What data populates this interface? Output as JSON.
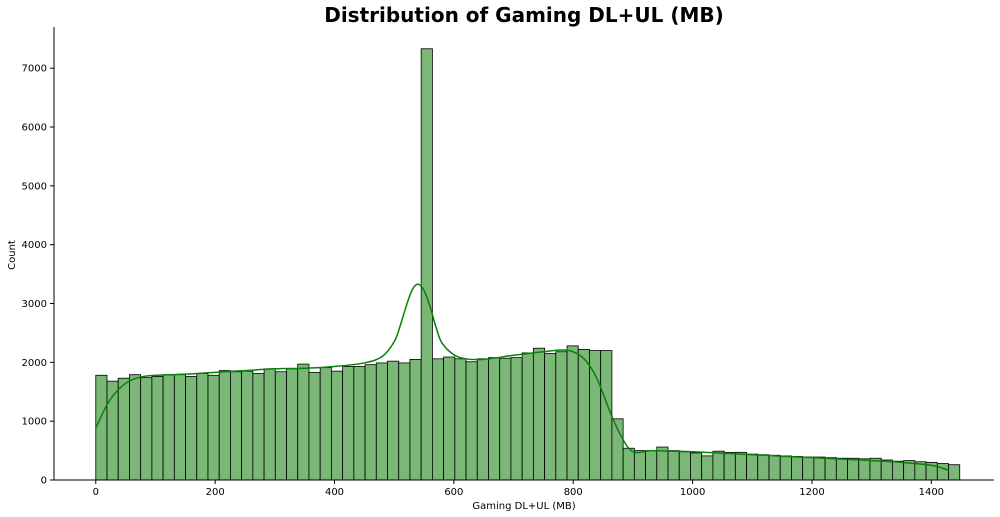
{
  "chart_data": {
    "type": "bar",
    "title": "Distribution of Gaming DL+UL (MB)",
    "xlabel": "Gaming DL+UL (MB)",
    "ylabel": "Count",
    "xlim": [
      -70,
      1505
    ],
    "ylim": [
      0,
      7700
    ],
    "xticks": [
      0,
      200,
      400,
      600,
      800,
      1000,
      1200,
      1400
    ],
    "yticks": [
      0,
      1000,
      2000,
      3000,
      4000,
      5000,
      6000,
      7000
    ],
    "grid": false,
    "bar_color": "#7bb877",
    "kde_color": "#098009",
    "bin_start": 0,
    "bin_width": 18.8,
    "counts": [
      1780,
      1680,
      1730,
      1790,
      1740,
      1760,
      1790,
      1790,
      1760,
      1810,
      1780,
      1860,
      1840,
      1850,
      1810,
      1890,
      1840,
      1890,
      1970,
      1830,
      1910,
      1850,
      1930,
      1930,
      1960,
      1990,
      2020,
      1990,
      2050,
      7330,
      2060,
      2090,
      2060,
      2010,
      2060,
      2080,
      2070,
      2080,
      2160,
      2240,
      2150,
      2180,
      2280,
      2220,
      2200,
      2200,
      1040,
      540,
      500,
      500,
      560,
      500,
      480,
      460,
      410,
      490,
      470,
      470,
      440,
      430,
      420,
      410,
      400,
      390,
      390,
      380,
      370,
      370,
      360,
      370,
      340,
      320,
      330,
      310,
      300,
      280,
      260
    ],
    "kde": {
      "x": [
        0,
        20,
        40,
        60,
        80,
        100,
        150,
        200,
        250,
        300,
        350,
        400,
        450,
        480,
        500,
        510,
        520,
        530,
        540,
        550,
        560,
        570,
        580,
        600,
        620,
        650,
        700,
        750,
        780,
        800,
        820,
        840,
        860,
        880,
        900,
        930,
        960,
        1000,
        1100,
        1200,
        1300,
        1350,
        1400,
        1430
      ],
      "y": [
        880,
        1300,
        1560,
        1700,
        1760,
        1780,
        1800,
        1830,
        1860,
        1890,
        1900,
        1930,
        1990,
        2100,
        2350,
        2620,
        2950,
        3230,
        3330,
        3220,
        2950,
        2600,
        2330,
        2130,
        2060,
        2050,
        2120,
        2180,
        2210,
        2180,
        2040,
        1720,
        1200,
        750,
        480,
        500,
        490,
        480,
        430,
        380,
        330,
        300,
        250,
        160
      ]
    }
  }
}
